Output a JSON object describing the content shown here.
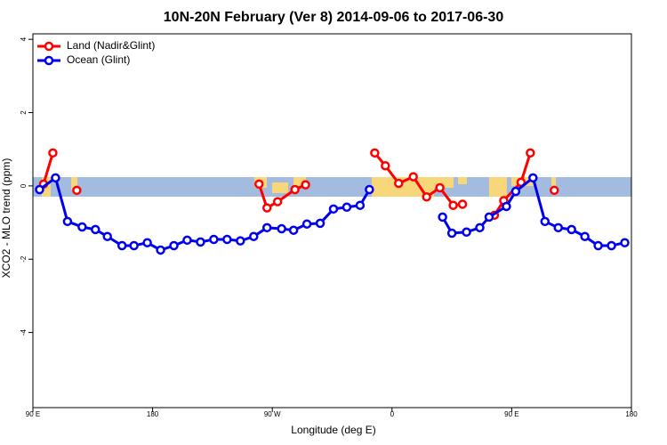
{
  "chart_data": {
    "type": "line",
    "title": "10N-20N February (Ver 8)   2014-09-06 to 2017-06-30",
    "x_label": "Longitude (deg E)",
    "y_label": "XCO2 - MLO trend (ppm)",
    "xlim": [
      90,
      540
    ],
    "ylim": [
      -6.05,
      4.15
    ],
    "xticks": [
      {
        "value": 90,
        "label": "90 E"
      },
      180,
      {
        "value": 270,
        "label": "90 W"
      },
      {
        "value": 360,
        "label": "0"
      },
      {
        "value": 450,
        "label": "90 E"
      },
      {
        "value": 540,
        "label": "180"
      }
    ],
    "yticks": [
      -4,
      -2,
      0,
      2,
      4
    ],
    "legend": "top-left",
    "series": [
      {
        "name": "Land (Nadir&Glint)",
        "color": "#ff0000",
        "x": [
          98,
          105,
          null,
          123,
          null,
          260,
          266,
          274,
          287,
          295,
          null,
          347,
          355,
          365,
          376,
          386,
          396,
          406,
          413,
          null,
          437,
          444,
          457,
          464,
          null,
          482
        ],
        "values": [
          0.05,
          0.9,
          null,
          -0.12,
          null,
          0.05,
          -0.6,
          -0.43,
          -0.1,
          0.03,
          null,
          0.9,
          0.55,
          0.07,
          0.25,
          -0.3,
          -0.05,
          -0.53,
          -0.5,
          null,
          -0.8,
          -0.4,
          0.1,
          0.9,
          null,
          -0.12
        ]
      },
      {
        "name": "Ocean (Glint)",
        "color": "#0000ee",
        "x": [
          95,
          107,
          116,
          127,
          137,
          146,
          157,
          166,
          176,
          186,
          196,
          206,
          216,
          226,
          236,
          246,
          256,
          266,
          277,
          286,
          296,
          306,
          316,
          326,
          336,
          343,
          null,
          398,
          405,
          416,
          426,
          433,
          446,
          453,
          466,
          475,
          485,
          495,
          505,
          515,
          525,
          535
        ],
        "values": [
          -0.1,
          0.22,
          -0.97,
          -1.12,
          -1.19,
          -1.38,
          -1.63,
          -1.63,
          -1.55,
          -1.75,
          -1.63,
          -1.48,
          -1.53,
          -1.46,
          -1.46,
          -1.5,
          -1.38,
          -1.14,
          -1.17,
          -1.21,
          -1.04,
          -1.02,
          -0.63,
          -0.58,
          -0.53,
          -0.1,
          null,
          -0.85,
          -1.29,
          -1.26,
          -1.14,
          -0.85,
          -0.56,
          -0.15,
          0.22,
          -0.97,
          -1.14,
          -1.19,
          -1.38,
          -1.63,
          -1.63,
          -1.55
        ]
      }
    ]
  }
}
